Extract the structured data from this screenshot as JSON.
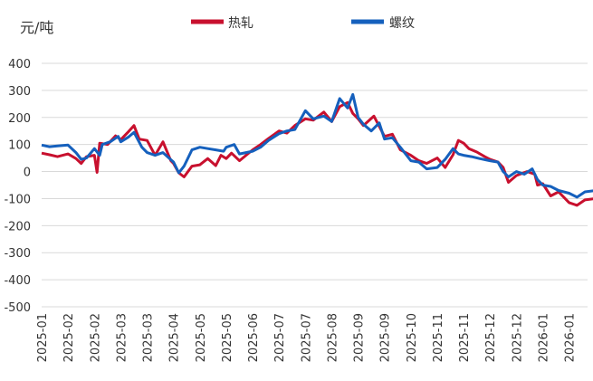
{
  "chart_data": {
    "type": "line",
    "unit_label": "元/吨",
    "ylim": [
      -500,
      400
    ],
    "yticks": [
      400,
      300,
      200,
      100,
      0,
      -100,
      -200,
      -300,
      -400,
      -500
    ],
    "xlabels": [
      "2025-01",
      "2025-02",
      "2025-02",
      "2025-03",
      "2025-03",
      "2025-04",
      "2025-05",
      "2025-05",
      "2025-06",
      "2025-07",
      "2025-07",
      "2025-08",
      "2025-09",
      "2025-09",
      "2025-10",
      "2025-11",
      "2025-11",
      "2025-12",
      "2025-12",
      "2026-01",
      "2026-01"
    ],
    "grid": "horizontal",
    "legend_position": "top-center",
    "series": [
      {
        "name": "热轧",
        "color": "#C8102E",
        "points": [
          [
            0,
            68
          ],
          [
            0.3,
            62
          ],
          [
            0.6,
            55
          ],
          [
            1,
            65
          ],
          [
            1.3,
            48
          ],
          [
            1.5,
            30
          ],
          [
            1.7,
            55
          ],
          [
            2,
            60
          ],
          [
            2.1,
            -3
          ],
          [
            2.2,
            105
          ],
          [
            2.5,
            100
          ],
          [
            2.8,
            132
          ],
          [
            3,
            118
          ],
          [
            3.3,
            148
          ],
          [
            3.5,
            170
          ],
          [
            3.7,
            120
          ],
          [
            4,
            115
          ],
          [
            4.3,
            60
          ],
          [
            4.6,
            110
          ],
          [
            4.9,
            40
          ],
          [
            5,
            30
          ],
          [
            5.2,
            -5
          ],
          [
            5.4,
            -20
          ],
          [
            5.7,
            20
          ],
          [
            6,
            25
          ],
          [
            6.3,
            48
          ],
          [
            6.6,
            22
          ],
          [
            6.8,
            60
          ],
          [
            7,
            48
          ],
          [
            7.2,
            68
          ],
          [
            7.5,
            40
          ],
          [
            8,
            80
          ],
          [
            8.3,
            100
          ],
          [
            8.6,
            122
          ],
          [
            9,
            150
          ],
          [
            9.3,
            142
          ],
          [
            9.6,
            170
          ],
          [
            10,
            195
          ],
          [
            10.3,
            190
          ],
          [
            10.7,
            220
          ],
          [
            11,
            185
          ],
          [
            11.3,
            240
          ],
          [
            11.6,
            255
          ],
          [
            11.8,
            215
          ],
          [
            12,
            195
          ],
          [
            12.2,
            170
          ],
          [
            12.6,
            205
          ],
          [
            13,
            130
          ],
          [
            13.3,
            138
          ],
          [
            13.6,
            80
          ],
          [
            14,
            60
          ],
          [
            14.3,
            40
          ],
          [
            14.6,
            30
          ],
          [
            15,
            50
          ],
          [
            15.3,
            15
          ],
          [
            15.6,
            62
          ],
          [
            15.8,
            115
          ],
          [
            16,
            105
          ],
          [
            16.2,
            85
          ],
          [
            16.5,
            72
          ],
          [
            16.8,
            55
          ],
          [
            17,
            45
          ],
          [
            17.3,
            35
          ],
          [
            17.5,
            15
          ],
          [
            17.7,
            -40
          ],
          [
            18,
            -15
          ],
          [
            18.4,
            0
          ],
          [
            18.7,
            -10
          ],
          [
            18.8,
            -50
          ],
          [
            19,
            -45
          ],
          [
            19.3,
            -90
          ],
          [
            19.6,
            -75
          ],
          [
            20,
            -115
          ],
          [
            20.3,
            -125
          ],
          [
            20.6,
            -105
          ],
          [
            21,
            -100
          ],
          [
            21.2,
            -80
          ],
          [
            21.5,
            -75
          ],
          [
            21.8,
            -100
          ],
          [
            22.1,
            -70
          ],
          [
            22.4,
            -65
          ],
          [
            22.7,
            -35
          ],
          [
            22.9,
            -48
          ],
          [
            23.2,
            -40
          ],
          [
            23.5,
            -65
          ],
          [
            23.8,
            -70
          ],
          [
            24,
            -80
          ],
          [
            24.3,
            -70
          ],
          [
            24.6,
            -65
          ],
          [
            24.9,
            -80
          ],
          [
            25,
            -55
          ],
          [
            25.2,
            -60
          ],
          [
            25.4,
            -40
          ],
          [
            25.6,
            -20
          ],
          [
            25.7,
            -10
          ]
        ]
      },
      {
        "name": "螺纹",
        "color": "#1560BD",
        "points": [
          [
            0,
            98
          ],
          [
            0.3,
            92
          ],
          [
            0.6,
            95
          ],
          [
            1,
            98
          ],
          [
            1.3,
            70
          ],
          [
            1.5,
            45
          ],
          [
            1.7,
            50
          ],
          [
            2,
            85
          ],
          [
            2.2,
            60
          ],
          [
            2.3,
            100
          ],
          [
            2.6,
            110
          ],
          [
            2.9,
            130
          ],
          [
            3,
            110
          ],
          [
            3.3,
            128
          ],
          [
            3.5,
            145
          ],
          [
            3.8,
            90
          ],
          [
            4,
            70
          ],
          [
            4.3,
            60
          ],
          [
            4.6,
            70
          ],
          [
            5,
            35
          ],
          [
            5.2,
            -5
          ],
          [
            5.4,
            20
          ],
          [
            5.7,
            80
          ],
          [
            6,
            90
          ],
          [
            6.3,
            85
          ],
          [
            6.6,
            80
          ],
          [
            6.9,
            75
          ],
          [
            7,
            90
          ],
          [
            7.3,
            100
          ],
          [
            7.5,
            65
          ],
          [
            8,
            75
          ],
          [
            8.3,
            90
          ],
          [
            8.6,
            115
          ],
          [
            9,
            140
          ],
          [
            9.3,
            150
          ],
          [
            9.6,
            155
          ],
          [
            10,
            225
          ],
          [
            10.3,
            195
          ],
          [
            10.7,
            205
          ],
          [
            11,
            185
          ],
          [
            11.3,
            270
          ],
          [
            11.6,
            235
          ],
          [
            11.8,
            285
          ],
          [
            12,
            200
          ],
          [
            12.2,
            175
          ],
          [
            12.5,
            150
          ],
          [
            12.8,
            180
          ],
          [
            13,
            120
          ],
          [
            13.3,
            125
          ],
          [
            13.6,
            90
          ],
          [
            14,
            40
          ],
          [
            14.3,
            35
          ],
          [
            14.6,
            10
          ],
          [
            15,
            15
          ],
          [
            15.3,
            45
          ],
          [
            15.6,
            85
          ],
          [
            15.8,
            65
          ],
          [
            16,
            60
          ],
          [
            16.3,
            55
          ],
          [
            16.6,
            48
          ],
          [
            17,
            40
          ],
          [
            17.3,
            35
          ],
          [
            17.5,
            0
          ],
          [
            17.7,
            -20
          ],
          [
            18,
            0
          ],
          [
            18.3,
            -10
          ],
          [
            18.6,
            10
          ],
          [
            18.8,
            -30
          ],
          [
            19,
            -50
          ],
          [
            19.3,
            -55
          ],
          [
            19.6,
            -70
          ],
          [
            20,
            -80
          ],
          [
            20.3,
            -95
          ],
          [
            20.6,
            -75
          ],
          [
            21,
            -70
          ],
          [
            21.2,
            -20
          ],
          [
            21.4,
            10
          ],
          [
            21.7,
            -5
          ],
          [
            22,
            15
          ],
          [
            22.3,
            35
          ],
          [
            22.6,
            40
          ],
          [
            22.8,
            85
          ],
          [
            23,
            50
          ],
          [
            23.2,
            55
          ],
          [
            23.5,
            50
          ],
          [
            23.8,
            70
          ],
          [
            24.1,
            50
          ],
          [
            24.4,
            30
          ],
          [
            24.6,
            55
          ],
          [
            24.9,
            45
          ],
          [
            25,
            25
          ],
          [
            25.2,
            45
          ],
          [
            25.4,
            30
          ],
          [
            25.6,
            50
          ],
          [
            25.7,
            55
          ]
        ]
      }
    ]
  }
}
